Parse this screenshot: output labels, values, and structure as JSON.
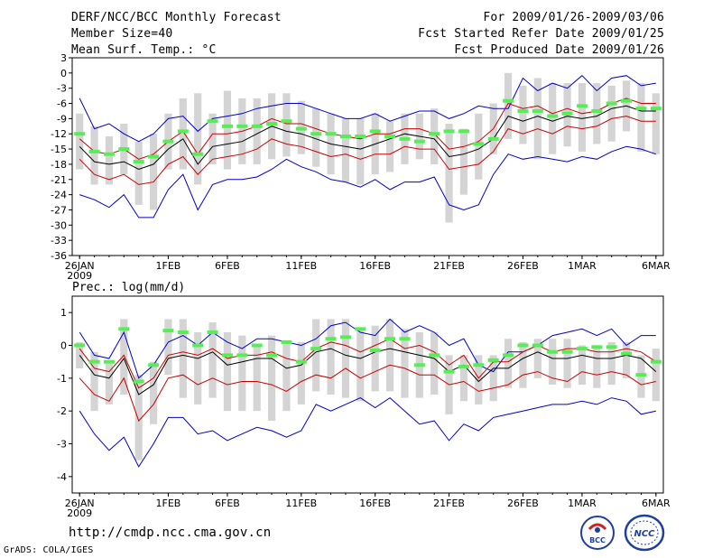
{
  "header": {
    "title": "DERF/NCC/BCC Monthly Forecast",
    "member_size": "Member Size=40",
    "variable": "Mean Surf. Temp.: °C",
    "period": "For 2009/01/26-2009/03/06",
    "started": "Fcst Started Refer Date 2009/01/25",
    "produced": "Fcst Produced Date 2009/01/26"
  },
  "footer": {
    "url": "http://cmdp.ncc.cma.gov.cn",
    "grads": "GrADS: COLA/IGES",
    "logo_bcc": "BCC",
    "logo_ncc": "NCC"
  },
  "colors": {
    "mean": "#000000",
    "spread": "#cc0000",
    "extreme": "#0000cc",
    "box": "#d4d4d4",
    "median": "#55ee55"
  },
  "chart_data": [
    {
      "type": "line",
      "title": "Mean Surf. Temp.: °C",
      "ylabel": "°C",
      "ylim": [
        -36,
        3
      ],
      "yticks": [
        3,
        0,
        -3,
        -6,
        -9,
        -12,
        -15,
        -18,
        -21,
        -24,
        -27,
        -30,
        -33,
        -36
      ],
      "ytick_labels": [
        "3",
        "0",
        "-3",
        "-6",
        "-9",
        "-12",
        "-15",
        "-18",
        "-21",
        "-24",
        "-27",
        "-30",
        "-33",
        "-36"
      ],
      "xlim": [
        -0.5,
        39.5
      ],
      "x": [
        0,
        1,
        2,
        3,
        4,
        5,
        6,
        7,
        8,
        9,
        10,
        11,
        12,
        13,
        14,
        15,
        16,
        17,
        18,
        19,
        20,
        21,
        22,
        23,
        24,
        25,
        26,
        27,
        28,
        29,
        30,
        31,
        32,
        33,
        34,
        35,
        36,
        37,
        38,
        39
      ],
      "xticks": [
        0,
        6,
        10,
        15,
        20,
        25,
        30,
        34,
        39
      ],
      "xtick_labels": [
        "26JAN",
        "1FEB",
        "6FEB",
        "11FEB",
        "16FEB",
        "21FEB",
        "26FEB",
        "1MAR",
        "6MAR"
      ],
      "year_label": "2009",
      "series": [
        {
          "name": "max",
          "role": "extreme",
          "values": [
            -5,
            -11,
            -10,
            -12,
            -13.5,
            -12,
            -9,
            -8.5,
            -11.5,
            -9,
            -8.5,
            -8,
            -7,
            -6.5,
            -6,
            -6,
            -7,
            -8,
            -9,
            -9,
            -8,
            -9.5,
            -8.5,
            -7.5,
            -7.5,
            -9,
            -8,
            -6.5,
            -7,
            -7,
            -1,
            -3.5,
            -2,
            -3,
            -0.5,
            -3.5,
            -1,
            -0.5,
            -2.5,
            -2
          ]
        },
        {
          "name": "upper",
          "role": "spread",
          "values": [
            -13,
            -15.5,
            -16,
            -15,
            -17,
            -16,
            -13.5,
            -11.5,
            -16,
            -12,
            -12,
            -11.5,
            -10.5,
            -9,
            -10,
            -10,
            -11,
            -12,
            -12.5,
            -13,
            -12,
            -12,
            -11,
            -11,
            -12,
            -15,
            -14.5,
            -13.5,
            -11,
            -6,
            -7,
            -6.5,
            -8,
            -7,
            -8,
            -7.5,
            -6,
            -5,
            -6,
            -6
          ]
        },
        {
          "name": "mean",
          "role": "mean",
          "values": [
            -14.5,
            -17.5,
            -18,
            -17.5,
            -19,
            -18,
            -15,
            -13,
            -18,
            -14.5,
            -14,
            -13.5,
            -12,
            -10.5,
            -11.5,
            -12,
            -13,
            -14,
            -14.5,
            -15,
            -14,
            -13,
            -12,
            -12.5,
            -13,
            -16.5,
            -16,
            -15,
            -13,
            -8.5,
            -9.5,
            -8.5,
            -9.5,
            -8.5,
            -9,
            -8.5,
            -7,
            -6.5,
            -7.5,
            -7.5
          ]
        },
        {
          "name": "lower",
          "role": "spread",
          "values": [
            -17,
            -20,
            -21,
            -20,
            -22,
            -21.5,
            -18,
            -16.5,
            -20,
            -17,
            -16.5,
            -16,
            -15,
            -13,
            -14,
            -14.5,
            -15.5,
            -16.5,
            -16,
            -17,
            -16,
            -16,
            -14.5,
            -15,
            -15,
            -19,
            -18.5,
            -18,
            -15.5,
            -11,
            -12,
            -11,
            -12,
            -10.5,
            -11,
            -10.5,
            -9,
            -8.5,
            -9.5,
            -9.5
          ]
        },
        {
          "name": "min",
          "role": "extreme",
          "values": [
            -24,
            -25,
            -26.5,
            -24,
            -28.5,
            -28.5,
            -23,
            -20,
            -27,
            -22,
            -21,
            -21,
            -20.5,
            -19,
            -17,
            -18.5,
            -19.5,
            -21,
            -21.5,
            -22.5,
            -21,
            -23,
            -21.5,
            -21.5,
            -20.5,
            -26,
            -27,
            -26,
            -20,
            -16,
            -17,
            -16.5,
            -17,
            -17.5,
            -16.5,
            -17,
            -15.5,
            -14.5,
            -15,
            -16
          ]
        }
      ],
      "boxes": [
        {
          "hi": -8,
          "lo": -19
        },
        {
          "hi": -10.5,
          "lo": -22
        },
        {
          "hi": -12.5,
          "lo": -22
        },
        {
          "hi": -10,
          "lo": -20
        },
        {
          "hi": -13.5,
          "lo": -26
        },
        {
          "hi": -12,
          "lo": -27
        },
        {
          "hi": -8,
          "lo": -19
        },
        {
          "hi": -5,
          "lo": -19
        },
        {
          "hi": -4,
          "lo": -22
        },
        {
          "hi": -8,
          "lo": -18
        },
        {
          "hi": -3.5,
          "lo": -19
        },
        {
          "hi": -5,
          "lo": -18
        },
        {
          "hi": -5,
          "lo": -18
        },
        {
          "hi": -4,
          "lo": -17
        },
        {
          "hi": -4,
          "lo": -16.5
        },
        {
          "hi": -5.5,
          "lo": -16
        },
        {
          "hi": -7,
          "lo": -18.5
        },
        {
          "hi": -8,
          "lo": -20
        },
        {
          "hi": -9,
          "lo": -21.5
        },
        {
          "hi": -9,
          "lo": -22
        },
        {
          "hi": -8,
          "lo": -20
        },
        {
          "hi": -9.5,
          "lo": -19.5
        },
        {
          "hi": -8,
          "lo": -18
        },
        {
          "hi": -8,
          "lo": -17
        },
        {
          "hi": -7,
          "lo": -18
        },
        {
          "hi": -10,
          "lo": -29.5
        },
        {
          "hi": -11,
          "lo": -24
        },
        {
          "hi": -8,
          "lo": -21
        },
        {
          "hi": -6,
          "lo": -16
        },
        {
          "hi": 0,
          "lo": -13
        },
        {
          "hi": -2.5,
          "lo": -14
        },
        {
          "hi": -1,
          "lo": -17
        },
        {
          "hi": -2,
          "lo": -16
        },
        {
          "hi": -2,
          "lo": -14.5
        },
        {
          "hi": -2,
          "lo": -15.5
        },
        {
          "hi": -2,
          "lo": -14
        },
        {
          "hi": -2.5,
          "lo": -13.5
        },
        {
          "hi": -1.5,
          "lo": -11.5
        },
        {
          "hi": -2,
          "lo": -15.5
        },
        {
          "hi": -4,
          "lo": -16
        }
      ],
      "medians": [
        -12,
        -15.5,
        -16,
        -15,
        -17.5,
        -16.5,
        -13.5,
        -11.5,
        -16,
        -9.5,
        -10.5,
        -10.5,
        -10.5,
        -10,
        -9.5,
        -11,
        -12,
        -12,
        -12.5,
        -12.5,
        -11.5,
        -12.5,
        -13,
        -13.5,
        -12,
        -11.5,
        -11.5,
        -14,
        -13,
        -5.5,
        -7.5,
        -7.5,
        -8.5,
        -8,
        -6.5,
        -7.5,
        -6,
        -5.5,
        -7,
        -7
      ]
    },
    {
      "type": "line",
      "title": "Prec.: log(mm/d)",
      "ylabel": "log(mm/d)",
      "ylim": [
        -4.5,
        1.5
      ],
      "yticks": [
        1,
        0,
        -1,
        -2,
        -3,
        -4
      ],
      "ytick_labels": [
        "1",
        "0",
        "-1",
        "-2",
        "-3",
        "-4"
      ],
      "xlim": [
        -0.5,
        39.5
      ],
      "x": [
        0,
        1,
        2,
        3,
        4,
        5,
        6,
        7,
        8,
        9,
        10,
        11,
        12,
        13,
        14,
        15,
        16,
        17,
        18,
        19,
        20,
        21,
        22,
        23,
        24,
        25,
        26,
        27,
        28,
        29,
        30,
        31,
        32,
        33,
        34,
        35,
        36,
        37,
        38,
        39
      ],
      "xticks": [
        0,
        6,
        10,
        15,
        20,
        25,
        30,
        34,
        39
      ],
      "xtick_labels": [
        "26JAN",
        "1FEB",
        "6FEB",
        "11FEB",
        "16FEB",
        "21FEB",
        "26FEB",
        "1MAR",
        "6MAR"
      ],
      "year_label": "2009",
      "series": [
        {
          "name": "max",
          "role": "extreme",
          "values": [
            0.4,
            -0.3,
            -0.4,
            0.4,
            -1,
            -0.6,
            0.1,
            0.3,
            0,
            0.4,
            0.1,
            -0.1,
            0.2,
            0.2,
            0.1,
            0,
            0.2,
            0.6,
            0.7,
            0.4,
            0.3,
            0.8,
            0.4,
            0.6,
            0.4,
            0,
            0.2,
            -0.6,
            -0.8,
            -0.2,
            -0.2,
            0,
            0.3,
            0.4,
            0.5,
            0.3,
            0.5,
            0,
            0.3,
            0.3
          ]
        },
        {
          "name": "upper",
          "role": "spread",
          "values": [
            -0.1,
            -0.7,
            -0.8,
            -0.3,
            -1.3,
            -1,
            -0.3,
            -0.2,
            -0.3,
            -0.1,
            -0.4,
            -0.3,
            -0.3,
            -0.2,
            -0.4,
            -0.5,
            -0.1,
            0.1,
            0,
            -0.2,
            0,
            0.2,
            -0.1,
            0,
            -0.2,
            -0.6,
            -0.3,
            -1,
            -0.5,
            -0.5,
            -0.2,
            0,
            -0.2,
            -0.1,
            -0.1,
            -0.2,
            -0.2,
            -0.1,
            -0.2,
            -0.5
          ]
        },
        {
          "name": "mean",
          "role": "mean",
          "values": [
            -0.3,
            -0.9,
            -1,
            -0.4,
            -1.5,
            -1.2,
            -0.4,
            -0.3,
            -0.4,
            -0.2,
            -0.6,
            -0.5,
            -0.4,
            -0.4,
            -0.7,
            -0.6,
            -0.2,
            -0.1,
            -0.3,
            -0.4,
            -0.2,
            -0.1,
            -0.2,
            -0.3,
            -0.4,
            -0.8,
            -0.6,
            -1.1,
            -0.7,
            -0.7,
            -0.4,
            -0.2,
            -0.4,
            -0.4,
            -0.3,
            -0.4,
            -0.4,
            -0.3,
            -0.4,
            -0.8
          ]
        },
        {
          "name": "lower",
          "role": "spread",
          "values": [
            -1,
            -1.5,
            -1.7,
            -1,
            -2.3,
            -1.8,
            -1,
            -0.9,
            -1.2,
            -1,
            -1.2,
            -1.1,
            -1.1,
            -1.2,
            -1.4,
            -1.1,
            -0.9,
            -1,
            -0.7,
            -1,
            -0.8,
            -0.6,
            -0.7,
            -0.9,
            -0.9,
            -1.2,
            -1.1,
            -1.4,
            -1.3,
            -1.2,
            -0.9,
            -0.8,
            -1,
            -1.1,
            -0.8,
            -0.9,
            -0.8,
            -0.9,
            -1.2,
            -1.1
          ]
        },
        {
          "name": "min",
          "role": "extreme",
          "values": [
            -2,
            -2.7,
            -3.2,
            -2.8,
            -3.7,
            -3,
            -2.2,
            -2.2,
            -2.7,
            -2.6,
            -2.9,
            -2.7,
            -2.5,
            -2.6,
            -2.8,
            -2.6,
            -1.8,
            -2,
            -1.8,
            -1.6,
            -1.9,
            -1.6,
            -2,
            -2.4,
            -2.3,
            -2.9,
            -2.4,
            -2.6,
            -2.2,
            -2.1,
            -2,
            -1.9,
            -1.8,
            -1.8,
            -1.7,
            -1.8,
            -1.6,
            -1.7,
            -2.1,
            -2
          ]
        }
      ],
      "boxes": [
        {
          "hi": 0.1,
          "lo": -0.7
        },
        {
          "hi": -0.2,
          "lo": -2
        },
        {
          "hi": -0.5,
          "lo": -1.8
        },
        {
          "hi": 0.8,
          "lo": -1.5
        },
        {
          "hi": -0.9,
          "lo": -3.5
        },
        {
          "hi": -0.5,
          "lo": -2.4
        },
        {
          "hi": 0.8,
          "lo": -0.9
        },
        {
          "hi": 0.8,
          "lo": -1.6
        },
        {
          "hi": 0.4,
          "lo": -1.8
        },
        {
          "hi": 0.7,
          "lo": -1.6
        },
        {
          "hi": 0.4,
          "lo": -2
        },
        {
          "hi": 0.3,
          "lo": -2
        },
        {
          "hi": 0,
          "lo": -2
        },
        {
          "hi": 0.3,
          "lo": -2.3
        },
        {
          "hi": 0.1,
          "lo": -2
        },
        {
          "hi": 0.1,
          "lo": -1.8
        },
        {
          "hi": 0.8,
          "lo": -1.4
        },
        {
          "hi": 0.8,
          "lo": -1.5
        },
        {
          "hi": 0.8,
          "lo": -1.6
        },
        {
          "hi": 0.5,
          "lo": -1.7
        },
        {
          "hi": 0.6,
          "lo": -1.4
        },
        {
          "hi": 0.8,
          "lo": -1.4
        },
        {
          "hi": 0.5,
          "lo": -1.6
        },
        {
          "hi": 0.4,
          "lo": -1.6
        },
        {
          "hi": 0.4,
          "lo": -1.5
        },
        {
          "hi": -0.3,
          "lo": -2.1
        },
        {
          "hi": -0.3,
          "lo": -1.7
        },
        {
          "hi": -0.3,
          "lo": -1.8
        },
        {
          "hi": -0.3,
          "lo": -1.7
        },
        {
          "hi": 0.2,
          "lo": -1.3
        },
        {
          "hi": 0.1,
          "lo": -1.3
        },
        {
          "hi": 0.2,
          "lo": -1
        },
        {
          "hi": 0.2,
          "lo": -1.2
        },
        {
          "hi": 0.2,
          "lo": -1.3
        },
        {
          "hi": 0,
          "lo": -1.2
        },
        {
          "hi": 0,
          "lo": -1.3
        },
        {
          "hi": 0.1,
          "lo": -1.2
        },
        {
          "hi": 0.1,
          "lo": -1
        },
        {
          "hi": -0.3,
          "lo": -1.6
        },
        {
          "hi": -0.1,
          "lo": -1.7
        }
      ],
      "medians": [
        0,
        -0.5,
        -0.5,
        0.5,
        -1.1,
        -0.6,
        0.45,
        0.4,
        0,
        0.4,
        -0.3,
        -0.3,
        0,
        -0.3,
        0.1,
        -0.5,
        -0.1,
        0.2,
        0.25,
        0.5,
        -0.15,
        0.2,
        0.2,
        -0.6,
        -0.3,
        -0.8,
        -0.65,
        -0.6,
        -0.45,
        -0.3,
        0,
        0,
        -0.2,
        -0.2,
        -0.1,
        -0.05,
        -0.05,
        -0.25,
        -0.9,
        -0.5
      ]
    }
  ]
}
